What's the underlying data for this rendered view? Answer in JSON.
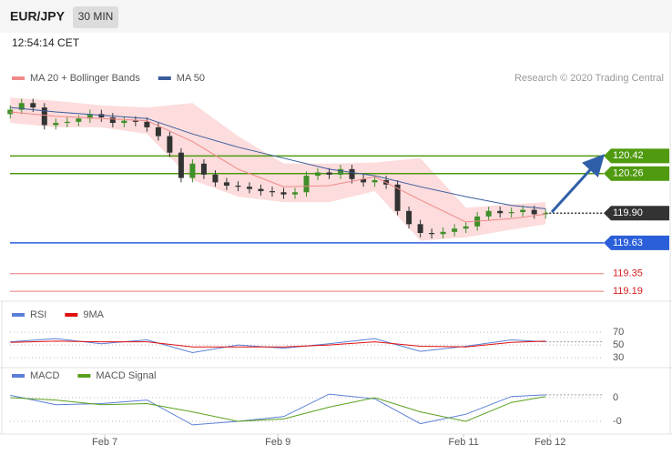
{
  "header": {
    "symbol": "EUR/JPY",
    "interval": "30 MIN",
    "time": "12:54:14 CET"
  },
  "chart_data": [
    {
      "type": "candlestick",
      "source": "Research © 2020 Trading Central",
      "ylim": [
        119.1,
        121.2
      ],
      "up_color": "#3f8f2a",
      "down_color": "#333333",
      "open": [
        120.8,
        120.84,
        120.9,
        120.86,
        120.7,
        120.72,
        120.73,
        120.76,
        120.8,
        120.77,
        120.72,
        120.74,
        120.73,
        120.68,
        120.6,
        120.45,
        120.22,
        120.35,
        120.25,
        120.18,
        120.15,
        120.14,
        120.12,
        120.1,
        120.09,
        120.07,
        120.09,
        120.24,
        120.27,
        120.25,
        120.3,
        120.21,
        120.18,
        120.2,
        120.16,
        119.92,
        119.8,
        119.72,
        119.71,
        119.73,
        119.76,
        119.78,
        119.87,
        119.92,
        119.9,
        119.91,
        119.93,
        119.89
      ],
      "high": [
        120.88,
        120.94,
        120.94,
        120.9,
        120.76,
        120.77,
        120.79,
        120.84,
        120.84,
        120.81,
        120.78,
        120.78,
        120.77,
        120.72,
        120.64,
        120.49,
        120.39,
        120.39,
        120.29,
        120.22,
        120.19,
        120.18,
        120.16,
        120.14,
        120.13,
        120.13,
        120.28,
        120.31,
        120.31,
        120.34,
        120.34,
        120.25,
        120.24,
        120.24,
        120.2,
        119.96,
        119.84,
        119.76,
        119.77,
        119.8,
        119.82,
        119.91,
        119.96,
        119.96,
        119.95,
        119.97,
        119.97,
        119.94
      ],
      "low": [
        120.76,
        120.8,
        120.82,
        120.66,
        120.66,
        120.68,
        120.69,
        120.72,
        120.73,
        120.68,
        120.68,
        120.69,
        120.64,
        120.56,
        120.41,
        120.18,
        120.18,
        120.21,
        120.14,
        120.11,
        120.1,
        120.08,
        120.06,
        120.05,
        120.03,
        120.03,
        120.05,
        120.2,
        120.21,
        120.21,
        120.17,
        120.14,
        120.14,
        120.12,
        119.88,
        119.76,
        119.68,
        119.67,
        119.67,
        119.69,
        119.72,
        119.74,
        119.83,
        119.86,
        119.86,
        119.87,
        119.85,
        119.85
      ],
      "close": [
        120.84,
        120.9,
        120.86,
        120.7,
        120.72,
        120.73,
        120.76,
        120.8,
        120.77,
        120.72,
        120.74,
        120.73,
        120.68,
        120.6,
        120.45,
        120.22,
        120.35,
        120.25,
        120.18,
        120.15,
        120.14,
        120.12,
        120.1,
        120.09,
        120.07,
        120.09,
        120.24,
        120.27,
        120.25,
        120.3,
        120.21,
        120.18,
        120.2,
        120.16,
        119.92,
        119.8,
        119.72,
        119.71,
        119.73,
        119.76,
        119.78,
        119.87,
        119.92,
        119.9,
        119.91,
        119.93,
        119.89,
        119.9
      ],
      "band": {
        "color": "#fbd3d3",
        "x": [
          0,
          4,
          8,
          12,
          16,
          20,
          24,
          28,
          32,
          36,
          40,
          44,
          47
        ],
        "upper": [
          120.95,
          120.92,
          120.88,
          120.86,
          120.9,
          120.6,
          120.35,
          120.35,
          120.36,
          120.4,
          119.95,
          119.98,
          120.0
        ],
        "lower": [
          120.72,
          120.68,
          120.68,
          120.62,
          120.2,
          120.05,
          120.0,
          120.0,
          120.1,
          119.65,
          119.68,
          119.75,
          119.8
        ]
      },
      "series": [
        {
          "name": "MA 20 + Bollinger Bands",
          "color": "#f08a8a",
          "x": [
            0,
            4,
            8,
            12,
            16,
            20,
            24,
            28,
            32,
            36,
            40,
            44,
            47
          ],
          "values": [
            120.82,
            120.78,
            120.76,
            120.74,
            120.55,
            120.3,
            120.14,
            120.15,
            120.23,
            120.02,
            119.82,
            119.85,
            119.89
          ]
        },
        {
          "name": "MA 50",
          "color": "#3b5c9c",
          "x": [
            0,
            4,
            8,
            12,
            16,
            20,
            24,
            28,
            32,
            36,
            40,
            44,
            47
          ],
          "values": [
            120.86,
            120.82,
            120.79,
            120.76,
            120.62,
            120.5,
            120.4,
            120.3,
            120.24,
            120.14,
            120.05,
            119.97,
            119.94
          ]
        }
      ],
      "levels": [
        {
          "value": 120.42,
          "label": "120.42",
          "color": "#4f9a0f",
          "boxed": true,
          "dotted": false
        },
        {
          "value": 120.26,
          "label": "120.26",
          "color": "#4f9a0f",
          "boxed": true,
          "dotted": false
        },
        {
          "value": 119.9,
          "label": "119.90",
          "color": "#333333",
          "boxed": true,
          "dotted": true
        },
        {
          "value": 119.63,
          "label": "119.63",
          "color": "#2b5fd9",
          "boxed": true,
          "dotted": false
        },
        {
          "value": 119.35,
          "label": "119.35",
          "color": "#d62020",
          "boxed": false,
          "dotted": false
        },
        {
          "value": 119.19,
          "label": "119.19",
          "color": "#d62020",
          "boxed": false,
          "dotted": false
        }
      ]
    },
    {
      "type": "line",
      "ylim": [
        16,
        100
      ],
      "yticks": [
        70,
        50,
        30
      ],
      "series": [
        {
          "name": "RSI",
          "color": "#5b7fd6",
          "x": [
            0,
            4,
            8,
            12,
            16,
            20,
            24,
            28,
            32,
            36,
            40,
            44,
            47
          ],
          "values": [
            55,
            60,
            52,
            58,
            38,
            50,
            45,
            52,
            60,
            40,
            48,
            58,
            55
          ]
        },
        {
          "name": "9MA",
          "color": "#e01010",
          "x": [
            0,
            4,
            8,
            12,
            16,
            20,
            24,
            28,
            32,
            36,
            40,
            44,
            47
          ],
          "values": [
            54,
            56,
            55,
            55,
            47,
            47,
            47,
            50,
            55,
            48,
            47,
            54,
            56
          ]
        }
      ]
    },
    {
      "type": "line",
      "ylim": [
        -0.15,
        0.1
      ],
      "yticks": [
        0,
        {
          "value": -0.1,
          "label": "-0"
        }
      ],
      "xlim": [
        -0.5,
        52.1
      ],
      "xticks": [
        {
          "value": 8.3,
          "label": "Feb 7"
        },
        {
          "value": 23.5,
          "label": "Feb 9"
        },
        {
          "value": 39.8,
          "label": "Feb 11"
        },
        {
          "value": 47.4,
          "label": "Feb 12"
        }
      ],
      "series": [
        {
          "name": "MACD",
          "color": "#5b7fd6",
          "x": [
            0,
            4,
            8,
            12,
            16,
            20,
            24,
            28,
            32,
            36,
            40,
            44,
            47
          ],
          "values": [
            0.01,
            -0.03,
            -0.025,
            -0.01,
            -0.115,
            -0.1,
            -0.08,
            0.015,
            -0.005,
            -0.11,
            -0.07,
            0.005,
            0.012
          ]
        },
        {
          "name": "MACD Signal",
          "color": "#5aa01e",
          "x": [
            0,
            4,
            8,
            12,
            16,
            20,
            24,
            28,
            32,
            36,
            40,
            44,
            47
          ],
          "values": [
            0.0,
            -0.01,
            -0.03,
            -0.025,
            -0.06,
            -0.1,
            -0.09,
            -0.04,
            0.0,
            -0.06,
            -0.1,
            -0.02,
            0.005
          ]
        }
      ]
    }
  ]
}
